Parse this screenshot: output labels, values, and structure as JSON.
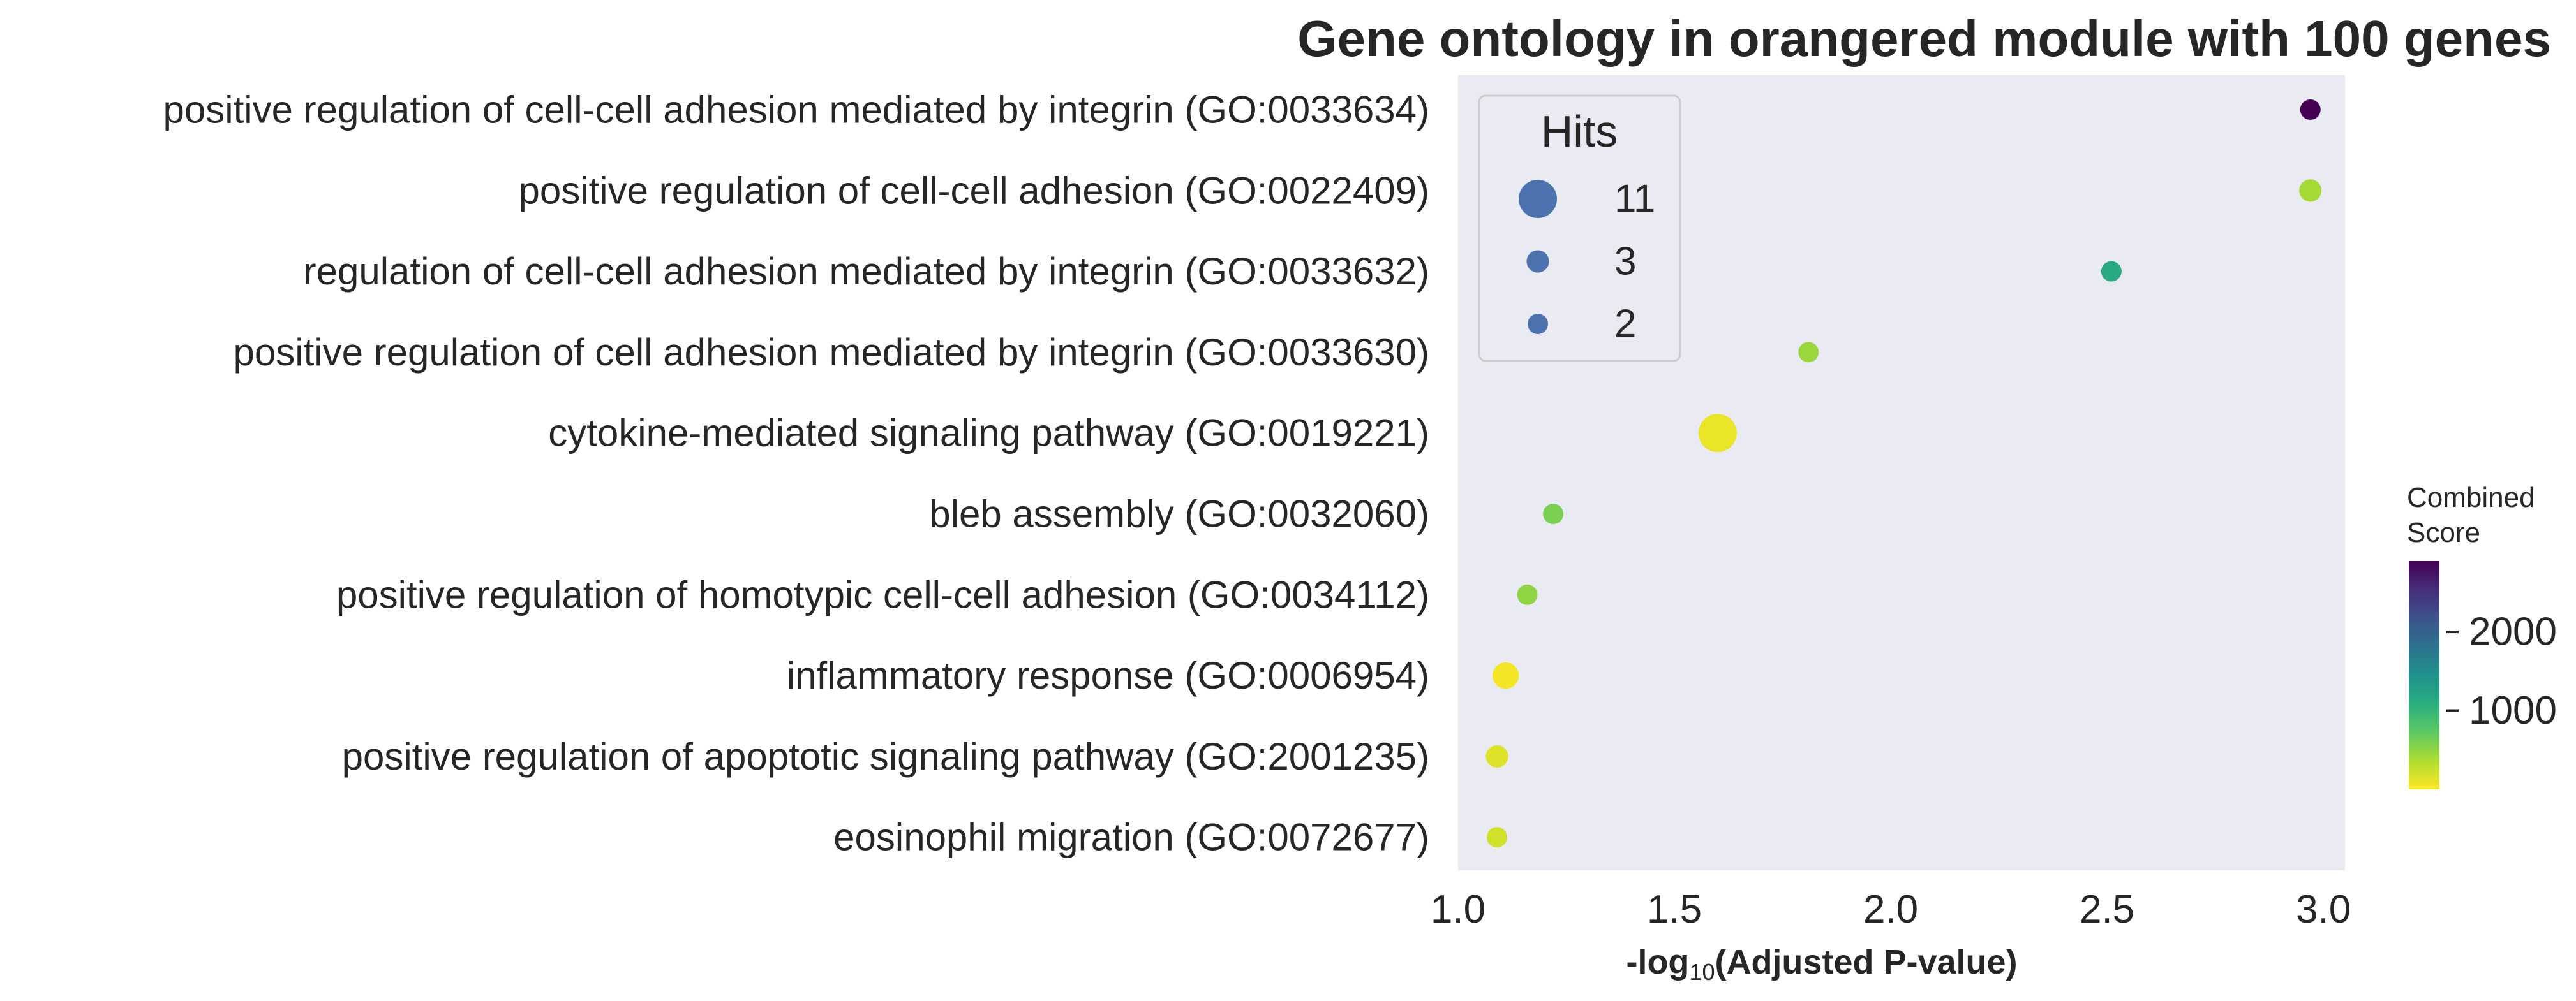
{
  "chart_data": {
    "type": "scatter",
    "title": "Gene ontology in orangered module with 100 genes",
    "xlabel_prefix": "-log",
    "xlabel_sub": "10",
    "xlabel_suffix": "(Adjusted P-value)",
    "xlim": [
      1.0,
      3.05
    ],
    "xticks": [
      "1.0",
      "1.5",
      "2.0",
      "2.5",
      "3.0"
    ],
    "xtick_values": [
      1.0,
      1.5,
      2.0,
      2.5,
      3.0
    ],
    "grid": false,
    "terms": [
      {
        "label": "positive regulation of cell-cell adhesion mediated by integrin (GO:0033634)",
        "x": 2.97,
        "hits": 2,
        "score": 2900
      },
      {
        "label": "positive regulation of cell-cell adhesion (GO:0022409)",
        "x": 2.97,
        "hits": 3,
        "score": 400
      },
      {
        "label": "regulation of cell-cell adhesion mediated by integrin (GO:0033632)",
        "x": 2.51,
        "hits": 2,
        "score": 1150
      },
      {
        "label": "positive regulation of cell adhesion mediated by integrin (GO:0033630)",
        "x": 1.81,
        "hits": 2,
        "score": 450
      },
      {
        "label": "cytokine-mediated signaling pathway (GO:0019221)",
        "x": 1.6,
        "hits": 11,
        "score": 80
      },
      {
        "label": "bleb assembly (GO:0032060)",
        "x": 1.22,
        "hits": 2,
        "score": 600
      },
      {
        "label": "positive regulation of homotypic cell-cell adhesion (GO:0034112)",
        "x": 1.16,
        "hits": 2,
        "score": 500
      },
      {
        "label": "inflammatory response (GO:0006954)",
        "x": 1.11,
        "hits": 5,
        "score": 40
      },
      {
        "label": "positive regulation of apoptotic signaling pathway (GO:2001235)",
        "x": 1.09,
        "hits": 3,
        "score": 140
      },
      {
        "label": "eosinophil migration (GO:0072677)",
        "x": 1.09,
        "hits": 2,
        "score": 200
      }
    ],
    "legend": {
      "title": "Hits",
      "placement": "upper-left",
      "entries": [
        {
          "label": "11",
          "hits": 11
        },
        {
          "label": "3",
          "hits": 3
        },
        {
          "label": "2",
          "hits": 2
        }
      ]
    },
    "colorbar": {
      "title_line1": "Combined",
      "title_line2": "Score",
      "colormap": "viridis_r",
      "range": [
        0,
        2900
      ],
      "ticks": [
        1000,
        2000
      ],
      "tick_labels": [
        "1000",
        "2000"
      ]
    },
    "colors": {
      "plot_background": "#eaeaf2",
      "legend_marker": "#4c72b0",
      "text": "#262626"
    }
  }
}
